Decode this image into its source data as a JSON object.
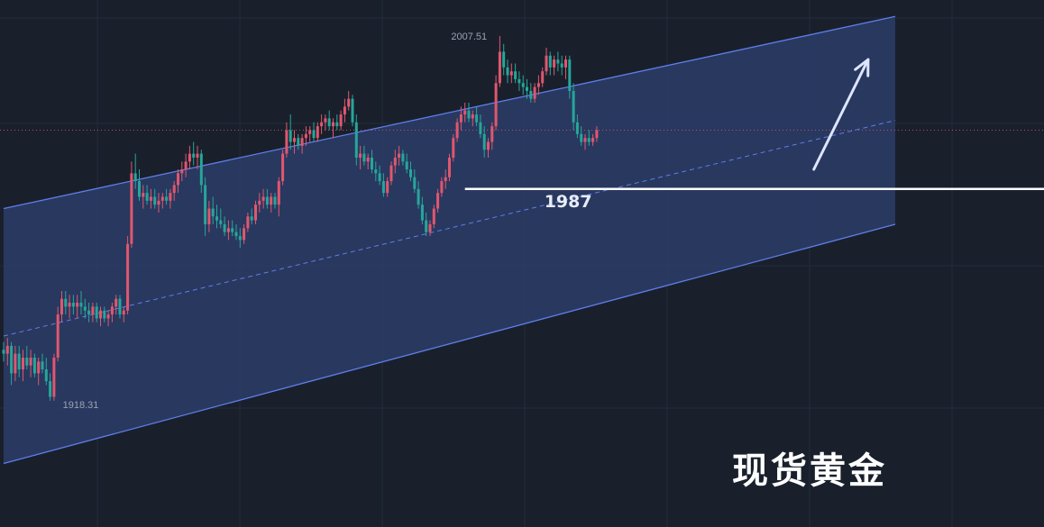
{
  "chart_data": {
    "type": "candlestick",
    "instrument_label": "现货黄金",
    "ylim": [
      1910,
      2026
    ],
    "grid": true,
    "colors": {
      "up": "#e0576e",
      "down": "#26a69a",
      "channel_line": "#5f7eea",
      "channel_fill": "#2e3f6e",
      "level_line": "#ffffff",
      "arrow": "#dde6ff",
      "mid_line": "#5f7eea",
      "background": "#19202c"
    },
    "annotations": {
      "high_label": "2007.51",
      "low_label": "1918.31",
      "support_label": "1987",
      "support_value": 1987
    },
    "channel": {
      "upper": [
        [
          0,
          1982
        ],
        [
          230,
          2031
        ]
      ],
      "lower": [
        [
          0,
          1917
        ],
        [
          230,
          1978
        ]
      ]
    },
    "forecast_arrow": {
      "from": [
        209,
        1992
      ],
      "to": [
        223,
        2020
      ]
    },
    "candles": [
      [
        1946,
        1948,
        1943,
        1945
      ],
      [
        1945,
        1949,
        1942,
        1947
      ],
      [
        1947,
        1948,
        1937,
        1940
      ],
      [
        1940,
        1947,
        1938,
        1945
      ],
      [
        1945,
        1947,
        1939,
        1941
      ],
      [
        1941,
        1946,
        1938,
        1944
      ],
      [
        1944,
        1947,
        1941,
        1942
      ],
      [
        1942,
        1946,
        1939,
        1944
      ],
      [
        1944,
        1945,
        1939,
        1940
      ],
      [
        1940,
        1944,
        1937,
        1943
      ],
      [
        1943,
        1945,
        1940,
        1941
      ],
      [
        1941,
        1944,
        1937,
        1938
      ],
      [
        1938,
        1940,
        1933,
        1934
      ],
      [
        1934,
        1945,
        1933,
        1944
      ],
      [
        1944,
        1957,
        1943,
        1955
      ],
      [
        1955,
        1961,
        1953,
        1959
      ],
      [
        1959,
        1961,
        1955,
        1957
      ],
      [
        1957,
        1960,
        1954,
        1958
      ],
      [
        1958,
        1960,
        1955,
        1957
      ],
      [
        1957,
        1960,
        1954,
        1958
      ],
      [
        1958,
        1961,
        1955,
        1957
      ],
      [
        1957,
        1959,
        1954,
        1956
      ],
      [
        1956,
        1958,
        1953,
        1955
      ],
      [
        1955,
        1958,
        1953,
        1957
      ],
      [
        1957,
        1958,
        1953,
        1954
      ],
      [
        1954,
        1957,
        1952,
        1956
      ],
      [
        1956,
        1957,
        1953,
        1954
      ],
      [
        1954,
        1956,
        1952,
        1955
      ],
      [
        1955,
        1958,
        1953,
        1957
      ],
      [
        1957,
        1960,
        1955,
        1959
      ],
      [
        1959,
        1960,
        1954,
        1955
      ],
      [
        1955,
        1957,
        1953,
        1956
      ],
      [
        1956,
        1975,
        1955,
        1973
      ],
      [
        1973,
        1994,
        1972,
        1991
      ],
      [
        1991,
        1996,
        1987,
        1989
      ],
      [
        1989,
        1992,
        1984,
        1985
      ],
      [
        1985,
        1988,
        1982,
        1986
      ],
      [
        1986,
        1988,
        1983,
        1984
      ],
      [
        1984,
        1987,
        1982,
        1985
      ],
      [
        1985,
        1987,
        1982,
        1983
      ],
      [
        1983,
        1986,
        1981,
        1984
      ],
      [
        1984,
        1986,
        1982,
        1985
      ],
      [
        1985,
        1987,
        1983,
        1984
      ],
      [
        1984,
        1987,
        1982,
        1986
      ],
      [
        1986,
        1989,
        1984,
        1988
      ],
      [
        1988,
        1992,
        1986,
        1991
      ],
      [
        1991,
        1994,
        1989,
        1992
      ],
      [
        1992,
        1996,
        1990,
        1994
      ],
      [
        1994,
        1998,
        1992,
        1996
      ],
      [
        1996,
        1999,
        1993,
        1995
      ],
      [
        1995,
        1998,
        1992,
        1996
      ],
      [
        1996,
        1997,
        1986,
        1988
      ],
      [
        1988,
        1990,
        1975,
        1978
      ],
      [
        1978,
        1984,
        1976,
        1982
      ],
      [
        1982,
        1985,
        1978,
        1980
      ],
      [
        1980,
        1983,
        1977,
        1979
      ],
      [
        1979,
        1982,
        1977,
        1978
      ],
      [
        1978,
        1980,
        1975,
        1976
      ],
      [
        1976,
        1979,
        1974,
        1977
      ],
      [
        1977,
        1979,
        1975,
        1976
      ],
      [
        1976,
        1978,
        1974,
        1975
      ],
      [
        1975,
        1977,
        1972,
        1974
      ],
      [
        1974,
        1978,
        1973,
        1977
      ],
      [
        1977,
        1981,
        1976,
        1980
      ],
      [
        1980,
        1982,
        1978,
        1979
      ],
      [
        1979,
        1984,
        1978,
        1983
      ],
      [
        1983,
        1986,
        1981,
        1984
      ],
      [
        1984,
        1987,
        1982,
        1985
      ],
      [
        1985,
        1987,
        1982,
        1983
      ],
      [
        1983,
        1986,
        1981,
        1985
      ],
      [
        1985,
        1986,
        1982,
        1983
      ],
      [
        1983,
        1990,
        1980,
        1989
      ],
      [
        1989,
        1997,
        1988,
        1996
      ],
      [
        1996,
        2004,
        1995,
        2002
      ],
      [
        2002,
        2006,
        1997,
        1999
      ],
      [
        1999,
        2002,
        1996,
        2000
      ],
      [
        2000,
        2001,
        1997,
        1998
      ],
      [
        1998,
        2001,
        1996,
        2000
      ],
      [
        2000,
        2003,
        1998,
        2001
      ],
      [
        2001,
        2003,
        1999,
        2002
      ],
      [
        2002,
        2004,
        1999,
        2000
      ],
      [
        2000,
        2004,
        1999,
        2003
      ],
      [
        2003,
        2006,
        2001,
        2004
      ],
      [
        2004,
        2006,
        2002,
        2005
      ],
      [
        2005,
        2007,
        2002,
        2003
      ],
      [
        2003,
        2005,
        2000,
        2004
      ],
      [
        2004,
        2006,
        2002,
        2003
      ],
      [
        2003,
        2007,
        2002,
        2006
      ],
      [
        2006,
        2010,
        2004,
        2008
      ],
      [
        2008,
        2012,
        2007,
        2010
      ],
      [
        2010,
        2011,
        2003,
        2004
      ],
      [
        2004,
        2006,
        1993,
        1995
      ],
      [
        1995,
        1998,
        1992,
        1996
      ],
      [
        1996,
        1998,
        1993,
        1994
      ],
      [
        1994,
        1996,
        1992,
        1995
      ],
      [
        1995,
        1997,
        1991,
        1992
      ],
      [
        1992,
        1994,
        1989,
        1991
      ],
      [
        1991,
        1993,
        1988,
        1989
      ],
      [
        1989,
        1991,
        1985,
        1986
      ],
      [
        1986,
        1990,
        1985,
        1989
      ],
      [
        1989,
        1994,
        1988,
        1993
      ],
      [
        1993,
        1997,
        1991,
        1995
      ],
      [
        1995,
        1998,
        1993,
        1996
      ],
      [
        1996,
        1997,
        1993,
        1994
      ],
      [
        1994,
        1996,
        1991,
        1992
      ],
      [
        1992,
        1994,
        1989,
        1990
      ],
      [
        1990,
        1992,
        1986,
        1987
      ],
      [
        1987,
        1989,
        1982,
        1983
      ],
      [
        1983,
        1985,
        1978,
        1979
      ],
      [
        1979,
        1981,
        1975,
        1976
      ],
      [
        1976,
        1979,
        1975,
        1978
      ],
      [
        1978,
        1983,
        1977,
        1982
      ],
      [
        1982,
        1987,
        1981,
        1986
      ],
      [
        1986,
        1990,
        1985,
        1989
      ],
      [
        1989,
        1992,
        1987,
        1990
      ],
      [
        1990,
        1996,
        1989,
        1995
      ],
      [
        1995,
        2001,
        1994,
        2000
      ],
      [
        2000,
        2005,
        1999,
        2004
      ],
      [
        2004,
        2008,
        2002,
        2006
      ],
      [
        2006,
        2009,
        2004,
        2007
      ],
      [
        2007,
        2009,
        2004,
        2005
      ],
      [
        2005,
        2007,
        2003,
        2006
      ],
      [
        2006,
        2008,
        2003,
        2004
      ],
      [
        2004,
        2006,
        2000,
        2001
      ],
      [
        2001,
        2003,
        1995,
        1997
      ],
      [
        1997,
        2000,
        1995,
        1999
      ],
      [
        1999,
        2004,
        1997,
        2003
      ],
      [
        2003,
        2016,
        2002,
        2014
      ],
      [
        2014,
        2026,
        2013,
        2022
      ],
      [
        2022,
        2024,
        2016,
        2018
      ],
      [
        2018,
        2020,
        2014,
        2016
      ],
      [
        2016,
        2019,
        2014,
        2017
      ],
      [
        2017,
        2019,
        2014,
        2015
      ],
      [
        2015,
        2017,
        2012,
        2014
      ],
      [
        2014,
        2016,
        2011,
        2013
      ],
      [
        2013,
        2015,
        2010,
        2012
      ],
      [
        2012,
        2014,
        2009,
        2010
      ],
      [
        2010,
        2014,
        2009,
        2013
      ],
      [
        2013,
        2016,
        2011,
        2014
      ],
      [
        2014,
        2018,
        2013,
        2017
      ],
      [
        2017,
        2023,
        2016,
        2021
      ],
      [
        2021,
        2022,
        2016,
        2018
      ],
      [
        2018,
        2021,
        2016,
        2020
      ],
      [
        2020,
        2022,
        2017,
        2019
      ],
      [
        2019,
        2021,
        2016,
        2018
      ],
      [
        2018,
        2021,
        2015,
        2020
      ],
      [
        2020,
        2021,
        2010,
        2012
      ],
      [
        2012,
        2014,
        2002,
        2004
      ],
      [
        2004,
        2006,
        2000,
        2001
      ],
      [
        2001,
        2003,
        1998,
        1999
      ],
      [
        1999,
        2001,
        1997,
        2000
      ],
      [
        2000,
        2002,
        1998,
        1999
      ],
      [
        1999,
        2001,
        1998,
        2000
      ],
      [
        2000,
        2003,
        1999,
        2002
      ]
    ]
  }
}
